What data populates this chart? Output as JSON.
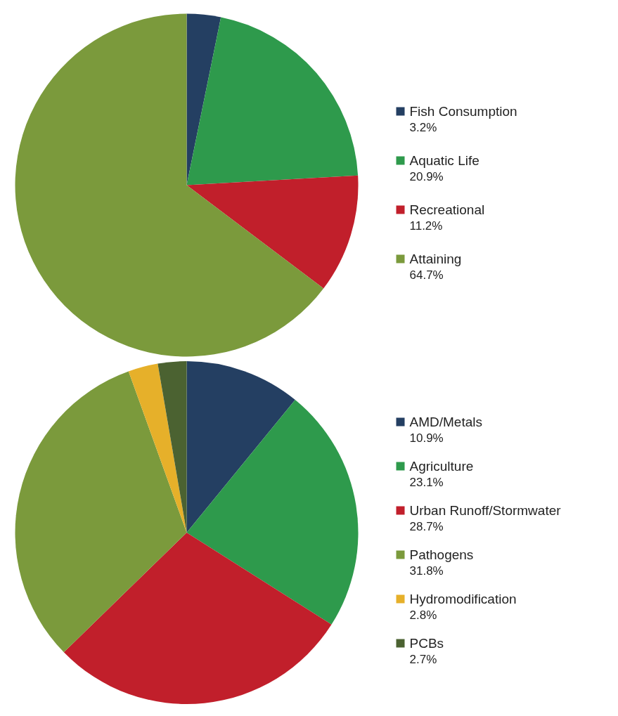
{
  "chart_data": [
    {
      "type": "pie",
      "categories": [
        "Fish Consumption",
        "Aquatic Life",
        "Recreational",
        "Attaining"
      ],
      "values": [
        3.2,
        20.9,
        11.2,
        64.7
      ],
      "value_labels": [
        "3.2%",
        "20.9%",
        "11.2%",
        "64.7%"
      ],
      "colors": [
        "#243f62",
        "#2e9a4c",
        "#c11f2b",
        "#7b9a3c"
      ],
      "legend": "right"
    },
    {
      "type": "pie",
      "categories": [
        "AMD/Metals",
        "Agriculture",
        "Urban Runoff/Stormwater",
        "Pathogens",
        "Hydromodification",
        "PCBs"
      ],
      "values": [
        10.9,
        23.1,
        28.7,
        31.8,
        2.8,
        2.7
      ],
      "value_labels": [
        "10.9%",
        "23.1%",
        "28.7%",
        "31.8%",
        "2.8%",
        "2.7%"
      ],
      "colors": [
        "#243f62",
        "#2e9a4c",
        "#c11f2b",
        "#7b9a3c",
        "#e6b02a",
        "#4b6231"
      ],
      "legend": "right"
    }
  ]
}
